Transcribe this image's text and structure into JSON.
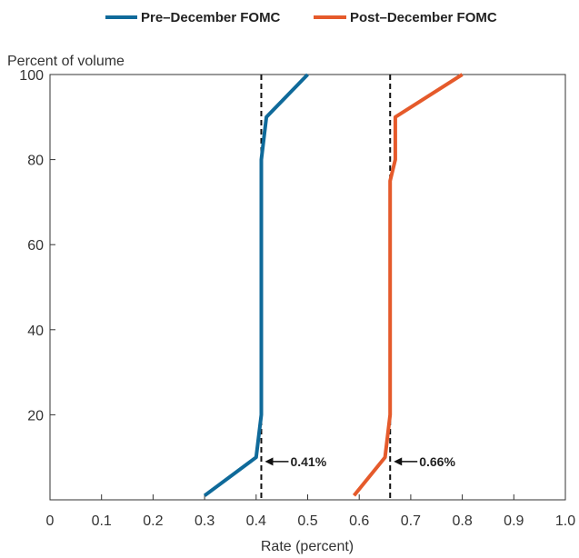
{
  "chart_data": {
    "type": "line",
    "xlabel": "Rate (percent)",
    "ylabel": "Percent of volume",
    "xlim": [
      0,
      1.0
    ],
    "ylim": [
      0,
      100
    ],
    "x_ticks": [
      "0",
      "0.1",
      "0.2",
      "0.3",
      "0.4",
      "0.5",
      "0.6",
      "0.7",
      "0.8",
      "0.9",
      "1.0"
    ],
    "y_ticks": [
      "20",
      "40",
      "60",
      "80",
      "100"
    ],
    "grid": false,
    "legend_position": "top-center",
    "series": [
      {
        "name": "Pre–December FOMC",
        "color": "#0f6a9a",
        "points": [
          [
            0.3,
            1
          ],
          [
            0.4,
            10
          ],
          [
            0.41,
            20
          ],
          [
            0.41,
            80
          ],
          [
            0.42,
            90
          ],
          [
            0.5,
            100
          ]
        ]
      },
      {
        "name": "Post–December FOMC",
        "color": "#e55a2b",
        "points": [
          [
            0.59,
            1
          ],
          [
            0.65,
            10
          ],
          [
            0.66,
            20
          ],
          [
            0.66,
            75
          ],
          [
            0.67,
            80
          ],
          [
            0.67,
            90
          ],
          [
            0.8,
            100
          ]
        ]
      }
    ],
    "reference_lines": [
      {
        "x": 0.41,
        "label": "0.41%"
      },
      {
        "x": 0.66,
        "label": "0.66%"
      }
    ],
    "annotation_y": 9
  }
}
